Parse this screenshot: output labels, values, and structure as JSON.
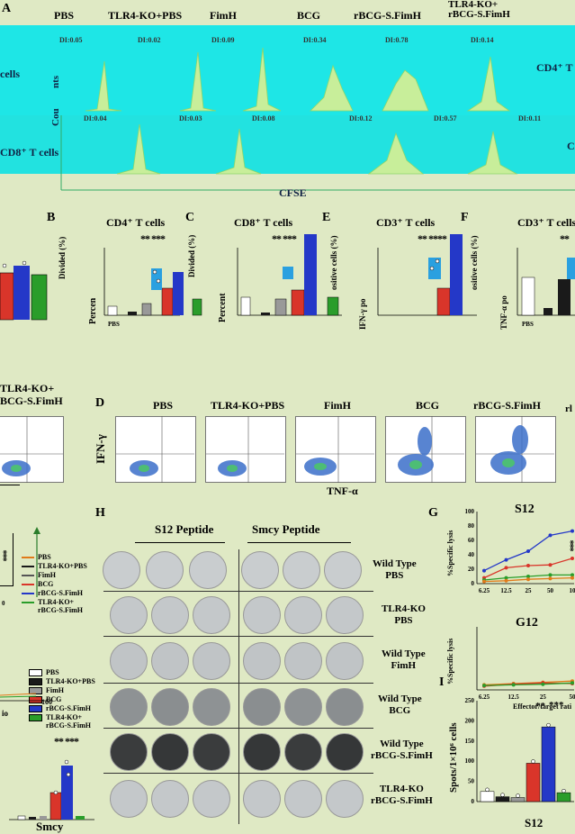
{
  "figure": {
    "panel_letters": {
      "a": "A",
      "b": "B",
      "c": "C",
      "e": "E",
      "f": "F",
      "d": "D",
      "h": "H",
      "g": "G",
      "i": "I"
    },
    "group_headers": [
      "PBS",
      "TLR4-KO+PBS",
      "FimH",
      "BCG",
      "rBCG-S.FimH",
      "TLR4-KO+\nrBCG-S.FimH"
    ],
    "flow": {
      "row1_label": "CD4⁺ T",
      "row1_left_label": "cells",
      "row2_label": "CD8⁺ T cells",
      "y_axis_label_a": "nts",
      "y_axis_label_b": "Cou",
      "x_axis_label": "CFSE",
      "right_edge_label": "C",
      "row1_di": [
        "DI:0.05",
        "DI:0.02",
        "DI:0.09",
        "DI:0.34",
        "DI:0.78",
        "DI:0.14"
      ],
      "row2_di": [
        "DI:0.04",
        "DI:0.03",
        "DI:0.08",
        "DI:0.12",
        "DI:0.57",
        "DI:0.11"
      ]
    },
    "bars_row": {
      "b_title": "CD4⁺ T cells",
      "c_title": "CD8⁺ T cells",
      "e_title": "CD3⁺ T cells",
      "f_title": "CD3⁺ T cells",
      "b_ylabel": "Divided (%)",
      "c_ylabel": "Divided (%)",
      "e_ylabel": "ositive cells (%)",
      "f_ylabel": "ositive cells (%)",
      "percent_label": "Percen",
      "percent_label_c": "Percent",
      "ifn_label": "IFN-γ po",
      "tnf_label": "TNF-α po",
      "sig_b": "**  ***",
      "sig_c": "**  ***",
      "sig_e": "** ****",
      "sig_f": "**",
      "xtick_pbs": "PBS"
    },
    "dot_plots": {
      "left_title": "TLR4-KO+\nBCG-S.FimH",
      "titles": [
        "PBS",
        "TLR4-KO+PBS",
        "FimH",
        "BCG",
        "rBCG-S.FimH"
      ],
      "right_cut": "rl",
      "y_label": "IFN-γ",
      "x_label": "TNF-α"
    },
    "elispot": {
      "col_header_left": "S12 Peptide",
      "col_header_right": "Smcy Peptide",
      "row_labels": [
        "Wild Type\nPBS",
        "TLR4-KO\nPBS",
        "Wild Type\nFimH",
        "Wild Type\nBCG",
        "Wild Type\nrBCG-S.FimH",
        "TLR4-KO\nrBCG-S.FimH"
      ]
    },
    "legend_top": [
      "PBS",
      "TLR4-KO+PBS",
      "FimH",
      "BCG",
      "rBCG-S.FimH",
      "TLR4-KO+\nrBCG-S.FimH"
    ],
    "legend_bottom": [
      "PBS",
      "TLR4-KO+PBS",
      "FimH",
      "BCG",
      "rBCG-S.FimH",
      "TLR4-KO+\nrBCG-S.FimH"
    ],
    "left_bits": {
      "sig_top": "***",
      "zero": "0",
      "x100": "100",
      "io": "io",
      "sig_bottom": "**  ***",
      "smcy": "Smcy"
    },
    "colors": {
      "pbs": "#ffffff",
      "tlr4_pbs": "#1a1a1a",
      "fimh": "#999999",
      "bcg": "#d9352a",
      "rbcg": "#2438c8",
      "tlr4_rbcg": "#2a9d2a"
    }
  },
  "chart_data": [
    {
      "type": "line",
      "title": "S12",
      "ylabel": "%Specific lysis",
      "xlabel": "",
      "categories": [
        "6.25",
        "12.5",
        "25",
        "50",
        "10"
      ],
      "ylim": [
        0,
        100
      ],
      "yticks": [
        "0",
        "20",
        "40",
        "60",
        "80",
        "100"
      ],
      "series": [
        {
          "name": "rBCG-S.FimH",
          "color": "#2438c8",
          "values": [
            18,
            33,
            45,
            67,
            73
          ]
        },
        {
          "name": "BCG",
          "color": "#d9352a",
          "values": [
            8,
            22,
            25,
            26,
            35
          ]
        },
        {
          "name": "TLR4-KO+rBCG-S.FimH",
          "color": "#2a9d2a",
          "values": [
            5,
            8,
            10,
            12,
            12
          ]
        },
        {
          "name": "PBS",
          "color": "#e07a1a",
          "values": [
            3,
            4,
            6,
            7,
            8
          ]
        }
      ],
      "sig": "***"
    },
    {
      "type": "line",
      "title": "G12",
      "ylabel": "%Specific lysis",
      "xlabel": "Effector/target rati",
      "categories": [
        "6.25",
        "12.5",
        "25",
        "50"
      ],
      "ylim": [
        0,
        100
      ],
      "series": [
        {
          "name": "PBS",
          "color": "#e07a1a",
          "values": [
            8,
            10,
            12,
            14
          ]
        },
        {
          "name": "BCG",
          "color": "#d9352a",
          "values": [
            6,
            9,
            11,
            10
          ]
        },
        {
          "name": "TLR4-KO+rBCG-S.FimH",
          "color": "#2a9d2a",
          "values": [
            7,
            8,
            9,
            11
          ]
        }
      ]
    },
    {
      "type": "bar",
      "title": "S12",
      "ylabel": "Spots/1×10⁶ cells",
      "categories": [
        "PBS",
        "TLR4-KO+PBS",
        "FimH",
        "BCG",
        "rBCG-S.FimH",
        "TLR4-KO+rBCG-S.FimH"
      ],
      "values": [
        25,
        12,
        10,
        95,
        185,
        22
      ],
      "ylim": [
        0,
        250
      ],
      "yticks": [
        "0",
        "50",
        "100",
        "150",
        "200",
        "250"
      ],
      "sig": [
        "**",
        "***"
      ]
    }
  ]
}
